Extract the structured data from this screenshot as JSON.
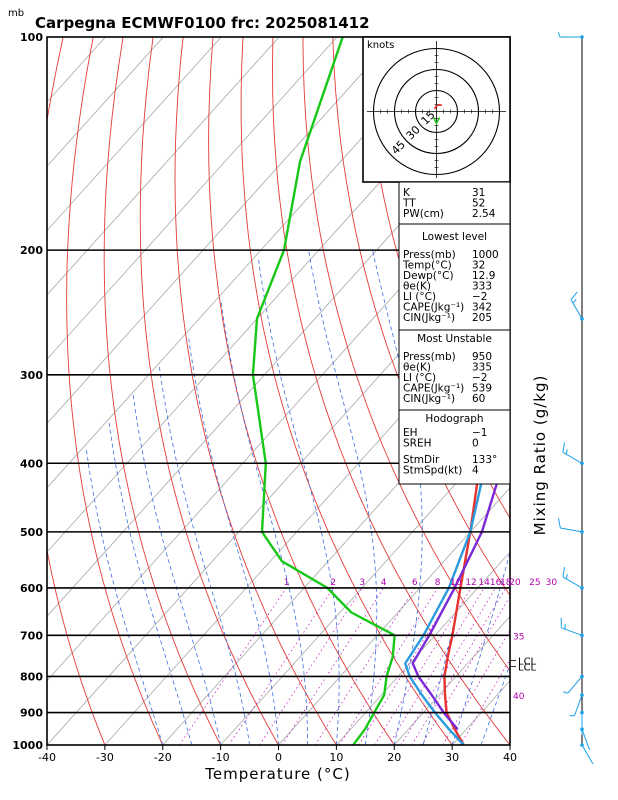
{
  "header": {
    "unit_label": "mb",
    "title": "Carpegna ECMWF0100  frc: 2025081412"
  },
  "chart_data": {
    "type": "line",
    "title": "Carpegna ECMWF0100  frc: 2025081412",
    "xlabel": "Temperature (°C)",
    "ylabel": "Mixing Ratio (g/kg)",
    "xlim": [
      -40,
      40
    ],
    "ylim_pressure": [
      1000,
      100
    ],
    "x_ticks": [
      -40,
      -30,
      -20,
      -10,
      0,
      10,
      20,
      30,
      40
    ],
    "pressure_ticks": [
      100,
      200,
      300,
      400,
      500,
      600,
      700,
      800,
      900,
      1000
    ],
    "mixing_ratio_labels": [
      "1",
      "2",
      "3",
      "4",
      "6",
      "8",
      "10",
      "12",
      "14",
      "16",
      "18",
      "20",
      "25",
      "30"
    ],
    "mixing_ratio_values": [
      1,
      2,
      3,
      4,
      6,
      8,
      10,
      12,
      14,
      16,
      18,
      20,
      25,
      30
    ],
    "theta_e_labels": [
      {
        "text": "35",
        "p": 700
      },
      {
        "text": "40",
        "p": 850
      }
    ],
    "lcl_labels": [
      "LCL",
      "LCL"
    ],
    "lcl_pressures": [
      760,
      775
    ],
    "series": [
      {
        "name": "Temperature",
        "color": "#e8322e",
        "p": [
          1000,
          950,
          900,
          850,
          800,
          750,
          700,
          600,
          500,
          400,
          300,
          250,
          200,
          150,
          100
        ],
        "t": [
          32,
          28,
          24,
          21,
          18,
          15.5,
          13,
          7,
          0,
          -9,
          -21,
          -30,
          -38,
          -43,
          -48
        ]
      },
      {
        "name": "Dewpoint",
        "color": "#18c818",
        "p": [
          1000,
          950,
          900,
          850,
          800,
          750,
          700,
          650,
          600,
          550,
          500,
          400,
          300,
          250,
          200,
          150,
          100
        ],
        "t": [
          12.9,
          12.5,
          11.5,
          10.5,
          8,
          6,
          3,
          -8,
          -16,
          -28,
          -36,
          -46,
          -62,
          -70,
          -76,
          -87,
          -99
        ]
      },
      {
        "name": "Parcel (surface)",
        "color": "#2b9be0",
        "p": [
          1000,
          950,
          900,
          850,
          800,
          767,
          700,
          600,
          500,
          400,
          300,
          200,
          150,
          110
        ],
        "t": [
          32,
          27,
          22,
          17,
          12,
          9.2,
          8,
          5,
          0,
          -8,
          -21,
          -43,
          -57,
          -71
        ]
      },
      {
        "name": "Virtual temperature parcel",
        "color": "#7a2ad8",
        "p": [
          950,
          900,
          850,
          800,
          767,
          700,
          600,
          500,
          400,
          300,
          200,
          150,
          100
        ],
        "t": [
          28.5,
          23.5,
          18.7,
          13.5,
          10.5,
          9,
          6,
          2,
          -5,
          -19,
          -40,
          -54,
          -69
        ]
      }
    ],
    "wind_profile": [
      {
        "p": 1000,
        "dir": 150,
        "spd": 2
      },
      {
        "p": 950,
        "dir": 160,
        "spd": 3
      },
      {
        "p": 900,
        "dir": 180,
        "spd": 4
      },
      {
        "p": 850,
        "dir": 200,
        "spd": 5
      },
      {
        "p": 800,
        "dir": 220,
        "spd": 6
      },
      {
        "p": 700,
        "dir": 290,
        "spd": 15
      },
      {
        "p": 600,
        "dir": 300,
        "spd": 15
      },
      {
        "p": 500,
        "dir": 280,
        "spd": 10
      },
      {
        "p": 400,
        "dir": 300,
        "spd": 15
      },
      {
        "p": 250,
        "dir": 330,
        "spd": 15
      },
      {
        "p": 100,
        "dir": 270,
        "spd": 8
      }
    ],
    "hodograph": {
      "units": "knots",
      "ring_labels": [
        "15",
        "30",
        "45"
      ],
      "ring_values": [
        15,
        30,
        45
      ]
    }
  },
  "indices": {
    "summary": [
      {
        "label": "K",
        "value": "31"
      },
      {
        "label": "TT",
        "value": "52"
      },
      {
        "label": "PW(cm)",
        "value": "2.54"
      }
    ],
    "lowest_level": {
      "title": "Lowest level",
      "rows": [
        {
          "label": "Press(mb)",
          "value": "1000"
        },
        {
          "label": "Temp(°C)",
          "value": "32"
        },
        {
          "label": "Dewp(°C)",
          "value": "12.9"
        },
        {
          "label": "θe(K)",
          "value": "333"
        },
        {
          "label": "LI (°C)",
          "value": "−2"
        },
        {
          "label": "CAPE(Jkg⁻¹)",
          "value": "342"
        },
        {
          "label": "CIN(Jkg⁻¹)",
          "value": "205"
        }
      ]
    },
    "most_unstable": {
      "title": "Most Unstable",
      "rows": [
        {
          "label": "Press(mb)",
          "value": "950"
        },
        {
          "label": "θe(K)",
          "value": "335"
        },
        {
          "label": "LI (°C)",
          "value": "−2"
        },
        {
          "label": "CAPE(Jkg⁻¹)",
          "value": "539"
        },
        {
          "label": "CIN(Jkg⁻¹)",
          "value": "60"
        }
      ]
    },
    "hodograph_box": {
      "title": "Hodograph",
      "rows": [
        {
          "label": "EH",
          "value": "−1"
        },
        {
          "label": "SREH",
          "value": "0"
        },
        {
          "label": "StmDir",
          "value": "133°"
        },
        {
          "label": "StmSpd(kt)",
          "value": "4"
        }
      ]
    }
  }
}
